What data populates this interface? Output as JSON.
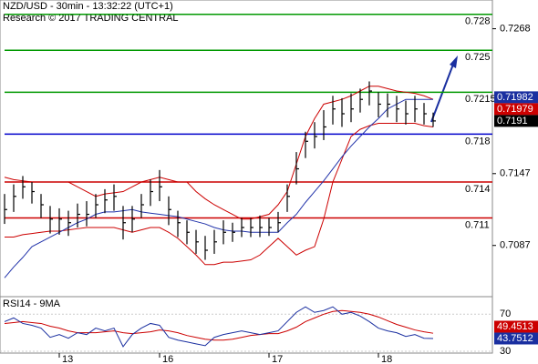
{
  "chart_data": {
    "type": "ohlc",
    "title": "NZD/USD - 30min - 13:32:22 (UTC+1)",
    "subtitle": "Research © 2017 TRADING CENTRAL",
    "categories": [
      null,
      null,
      null,
      null,
      null,
      null,
      "13",
      null,
      null,
      null,
      null,
      null,
      null,
      null,
      null,
      null,
      null,
      "16",
      null,
      null,
      null,
      null,
      null,
      null,
      null,
      null,
      null,
      null,
      null,
      "17",
      null,
      null,
      null,
      null,
      null,
      null,
      null,
      null,
      null,
      null,
      null,
      "18",
      null,
      null,
      null,
      null,
      null,
      null
    ],
    "high": [
      0.713,
      0.7138,
      0.7145,
      0.714,
      0.713,
      0.712,
      0.7118,
      0.7116,
      0.7122,
      0.7124,
      0.713,
      0.7134,
      0.7138,
      0.712,
      0.712,
      0.713,
      0.7142,
      0.715,
      0.7128,
      0.7116,
      0.7108,
      0.71,
      0.7095,
      0.71,
      0.7108,
      0.7106,
      0.711,
      0.711,
      0.7112,
      0.711,
      0.7115,
      0.7138,
      0.7165,
      0.7182,
      0.719,
      0.72,
      0.7212,
      0.721,
      0.7214,
      0.7218,
      0.7224,
      0.7215,
      0.7214,
      0.7212,
      0.7208,
      0.7212,
      0.7206,
      0.7198
    ],
    "low": [
      0.7105,
      0.7115,
      0.7126,
      0.7122,
      0.711,
      0.7097,
      0.7096,
      0.7095,
      0.7102,
      0.7103,
      0.711,
      0.7114,
      0.7116,
      0.7092,
      0.7098,
      0.711,
      0.712,
      0.7124,
      0.7104,
      0.7094,
      0.7088,
      0.708,
      0.7075,
      0.708,
      0.7088,
      0.709,
      0.7094,
      0.7094,
      0.7094,
      0.7095,
      0.7098,
      0.7115,
      0.7138,
      0.716,
      0.7168,
      0.7175,
      0.7188,
      0.7186,
      0.719,
      0.7198,
      0.7204,
      0.7194,
      0.7194,
      0.719,
      0.7188,
      0.719,
      0.7188,
      0.7186
    ],
    "close": [
      0.7117,
      0.7128,
      0.7136,
      0.7132,
      0.7121,
      0.7109,
      0.7109,
      0.7106,
      0.7113,
      0.7113,
      0.7121,
      0.7125,
      0.7128,
      0.7106,
      0.7109,
      0.7121,
      0.7132,
      0.7136,
      0.7117,
      0.7106,
      0.7098,
      0.709,
      0.7083,
      0.709,
      0.7098,
      0.7098,
      0.7102,
      0.7102,
      0.7102,
      0.7102,
      0.7106,
      0.7128,
      0.7151,
      0.7174,
      0.7178,
      0.7186,
      0.7201,
      0.7197,
      0.7201,
      0.7209,
      0.7216,
      0.7205,
      0.7205,
      0.7201,
      0.7197,
      0.7201,
      0.7197,
      0.7191
    ],
    "bar_color": "#000000",
    "upper": [
      0.7144,
      0.7142,
      0.7141,
      0.714,
      0.714,
      0.714,
      0.714,
      0.714,
      0.7136,
      0.7132,
      0.7128,
      0.713,
      0.7131,
      0.7132,
      0.7136,
      0.714,
      0.7142,
      0.7144,
      0.7142,
      0.714,
      0.714,
      0.7132,
      0.7126,
      0.7121,
      0.7117,
      0.7113,
      0.7109,
      0.7109,
      0.7111,
      0.7113,
      0.7121,
      0.7132,
      0.7155,
      0.7178,
      0.7193,
      0.7205,
      0.7207,
      0.7209,
      0.7212,
      0.7216,
      0.722,
      0.722,
      0.7218,
      0.7216,
      0.7215,
      0.7214,
      0.7212,
      0.7209
    ],
    "lower": [
      0.7094,
      0.7094,
      0.7096,
      0.7097,
      0.7098,
      0.7099,
      0.7099,
      0.71,
      0.7101,
      0.7102,
      0.7102,
      0.7102,
      0.7102,
      0.71,
      0.7098,
      0.71,
      0.7102,
      0.7102,
      0.7098,
      0.7093,
      0.7086,
      0.7079,
      0.7071,
      0.7071,
      0.7073,
      0.7073,
      0.7074,
      0.7075,
      0.7079,
      0.7086,
      0.7093,
      0.7086,
      0.7079,
      0.7083,
      0.7086,
      0.7109,
      0.714,
      0.7159,
      0.7178,
      0.7184,
      0.7187,
      0.7189,
      0.7189,
      0.7189,
      0.7189,
      0.7189,
      0.7187,
      0.7186
    ],
    "band_color": "#cc0000",
    "ma": [
      0.706,
      0.7069,
      0.7077,
      0.7086,
      0.709,
      0.7094,
      0.7098,
      0.7102,
      0.7106,
      0.7109,
      0.7113,
      0.7115,
      0.7115,
      0.7116,
      0.7117,
      0.7115,
      0.7114,
      0.7113,
      0.7112,
      0.7111,
      0.7109,
      0.7107,
      0.7105,
      0.7102,
      0.71,
      0.7099,
      0.7099,
      0.7098,
      0.7098,
      0.7098,
      0.7098,
      0.7106,
      0.7113,
      0.7123,
      0.7132,
      0.7141,
      0.7151,
      0.7161,
      0.717,
      0.7178,
      0.7186,
      0.7193,
      0.7201,
      0.7205,
      0.7209,
      0.7209,
      0.7209,
      0.7209
    ],
    "ma_color": "#2233aa",
    "ylim": [
      0.7045,
      0.7292
    ],
    "yticks": [
      0.7268,
      0.7147,
      0.7087
    ],
    "levels": [
      0.728,
      0.725,
      0.7215,
      0.718,
      0.714,
      0.711
    ],
    "level_colors": [
      "#009900",
      "#009900",
      "#009900",
      "#0000cc",
      "#cc0000",
      "#cc0000"
    ],
    "badges": [
      {
        "value": 0.71982,
        "color": "#1a2fa0"
      },
      {
        "value": 0.71979,
        "color": "#cc0000"
      },
      {
        "value": 0.7191,
        "color": "#000000"
      }
    ],
    "rsi_title": "RSI14 - 9MA",
    "rsi": [
      62,
      66,
      60,
      58,
      55,
      45,
      48,
      44,
      50,
      48,
      55,
      52,
      55,
      35,
      48,
      55,
      60,
      58,
      45,
      42,
      40,
      38,
      36,
      45,
      48,
      50,
      52,
      50,
      48,
      50,
      52,
      62,
      72,
      78,
      72,
      74,
      78,
      70,
      72,
      68,
      62,
      55,
      52,
      50,
      46,
      48,
      44,
      43.7512
    ],
    "rsi_color": "#1a2fa0",
    "signal": [
      60,
      61,
      62,
      61,
      60,
      57,
      55,
      52,
      50,
      50,
      50,
      51,
      52,
      50,
      49,
      50,
      51,
      53,
      52,
      50,
      47,
      45,
      43,
      42,
      42,
      43,
      45,
      47,
      48,
      49,
      49,
      52,
      56,
      62,
      66,
      70,
      73,
      74,
      73,
      72,
      70,
      67,
      63,
      59,
      56,
      53,
      51,
      49.4513
    ],
    "signal_color": "#cc0000",
    "rsi_ylim": [
      28,
      87
    ],
    "rsi_yticks": [
      70,
      30
    ],
    "rsi_badges": [
      {
        "value": 49.4513,
        "color": "#cc0000"
      },
      {
        "value": 43.7512,
        "color": "#1a2fa0"
      }
    ]
  }
}
